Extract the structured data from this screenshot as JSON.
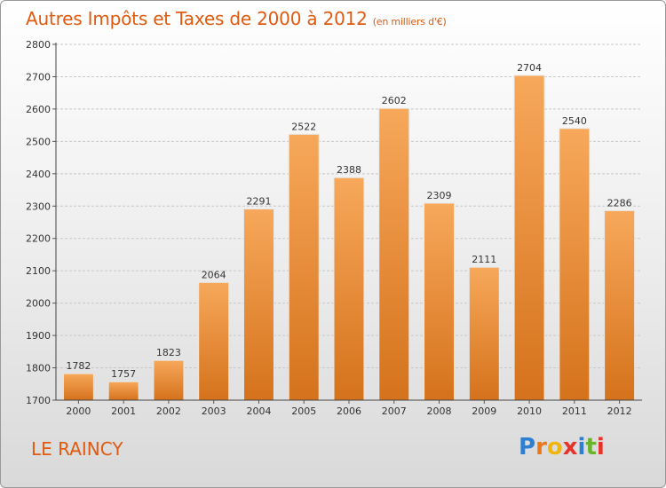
{
  "header": {
    "title": "Autres Impôts et Taxes de 2000 à 2012",
    "subtitle": "(en milliers d'€)"
  },
  "footer": {
    "city": "LE RAINCY",
    "logo_text": "Proxiti"
  },
  "colors": {
    "bar_light": "#f7a85a",
    "bar_dark": "#d5721c",
    "title": "#e05a10",
    "logo_letters": [
      "#2f7fd0",
      "#e8781c",
      "#f2b50c",
      "#e8322a",
      "#2f7fd0",
      "#6ab42d",
      "#e8322a"
    ]
  },
  "chart_data": {
    "type": "bar",
    "categories": [
      "2000",
      "2001",
      "2002",
      "2003",
      "2004",
      "2005",
      "2006",
      "2007",
      "2008",
      "2009",
      "2010",
      "2011",
      "2012"
    ],
    "values": [
      1782,
      1757,
      1823,
      2064,
      2291,
      2522,
      2388,
      2602,
      2309,
      2111,
      2704,
      2540,
      2286
    ],
    "title": "Autres Impôts et Taxes de 2000 à 2012",
    "ylim": [
      1700,
      2800
    ],
    "yticks": [
      1700,
      1800,
      1900,
      2000,
      2100,
      2200,
      2300,
      2400,
      2500,
      2600,
      2700,
      2800
    ],
    "grid": true
  }
}
